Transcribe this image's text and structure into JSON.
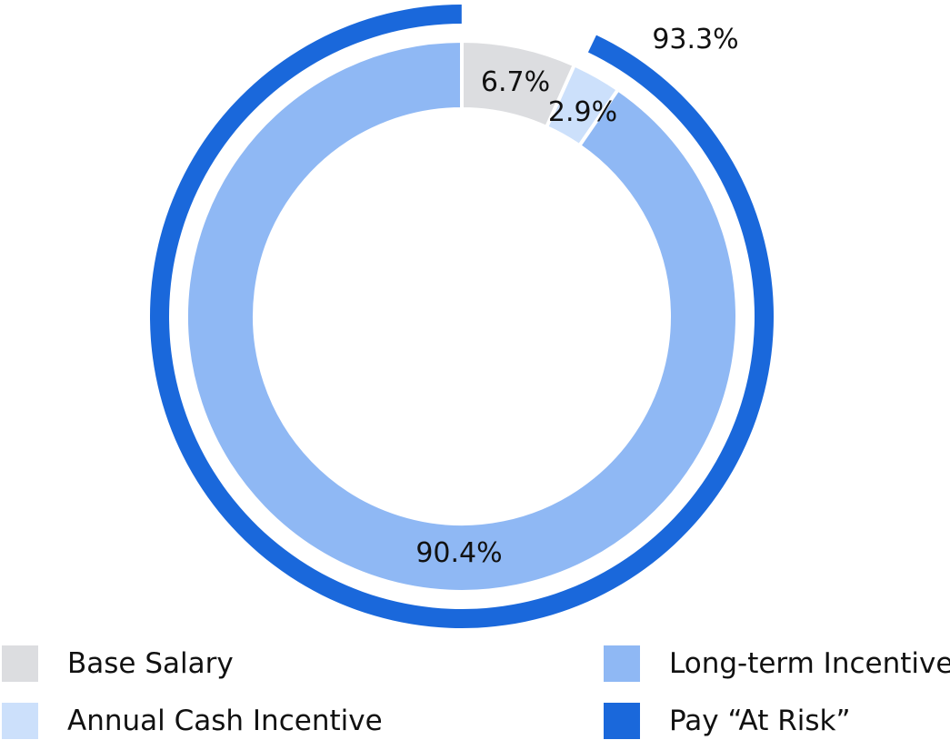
{
  "chart_data": {
    "type": "pie",
    "subtype": "donut",
    "title": "",
    "inner_ring": {
      "categories": [
        "Base Salary",
        "Annual Cash Incentive",
        "Long-term Incentive"
      ],
      "values": [
        6.7,
        2.9,
        90.4
      ],
      "labels": [
        "6.7%",
        "2.9%",
        "90.4%"
      ],
      "colors": [
        "#dcdde0",
        "#cce0fb",
        "#8fb8f4"
      ]
    },
    "outer_ring": {
      "categories": [
        "Pay “At Risk”"
      ],
      "values": [
        93.3
      ],
      "labels": [
        "93.3%"
      ],
      "colors": [
        "#1a68db"
      ]
    },
    "legend_position": "bottom"
  },
  "legend": {
    "items": [
      {
        "label": "Base Salary",
        "color": "#dcdde0"
      },
      {
        "label": "Annual Cash Incentive",
        "color": "#cce0fb"
      },
      {
        "label": "Long-term Incentive",
        "color": "#8fb8f4"
      },
      {
        "label": "Pay “At Risk”",
        "color": "#1a68db"
      }
    ]
  }
}
